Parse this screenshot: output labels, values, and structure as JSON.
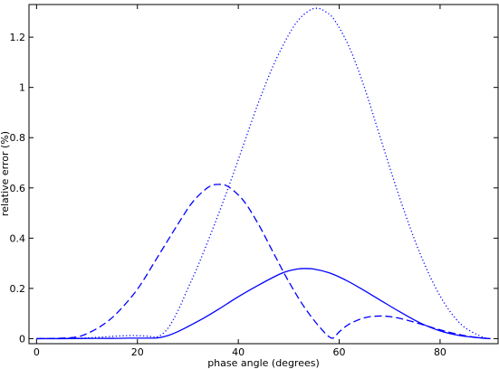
{
  "chart_data": {
    "type": "line",
    "title": "",
    "xlabel": "phase angle (degrees)",
    "ylabel": "relative error (%)",
    "xlim": [
      -1.5,
      91.5
    ],
    "ylim": [
      -0.02,
      1.33
    ],
    "xticks": [
      0,
      20,
      40,
      60,
      80
    ],
    "xtick_labels": [
      "0",
      "20",
      "40",
      "60",
      "80"
    ],
    "yticks": [
      0,
      0.2,
      0.4,
      0.6,
      0.8,
      1,
      1.2
    ],
    "ytick_labels": [
      "0",
      "0.2",
      "0.4",
      "0.6",
      "0.8",
      "1",
      "1.2"
    ],
    "grid": false,
    "legend": "none",
    "line_color": "#0000ff",
    "series": [
      {
        "style": "solid",
        "x": [
          0,
          5,
          10,
          15,
          18,
          20,
          22,
          24,
          26,
          28,
          30,
          33,
          36,
          40,
          44,
          48,
          50,
          52,
          53,
          55,
          58,
          61,
          64,
          68,
          72,
          76,
          80,
          84,
          88,
          90
        ],
        "y": [
          0,
          0,
          0.001,
          0.001,
          0.002,
          0.002,
          0.002,
          0.003,
          0.012,
          0.028,
          0.048,
          0.08,
          0.116,
          0.167,
          0.213,
          0.255,
          0.27,
          0.278,
          0.279,
          0.277,
          0.262,
          0.236,
          0.203,
          0.155,
          0.107,
          0.063,
          0.031,
          0.012,
          0.003,
          0
        ]
      },
      {
        "style": "dashed",
        "x": [
          0,
          5,
          8,
          10,
          13,
          16,
          20,
          24,
          28,
          31,
          34,
          36,
          38,
          41,
          44,
          47,
          50,
          53,
          56,
          58.5,
          60,
          62,
          65,
          68,
          71,
          75,
          79,
          83,
          87,
          90
        ],
        "y": [
          0,
          0.002,
          0.007,
          0.02,
          0.053,
          0.103,
          0.197,
          0.325,
          0.455,
          0.545,
          0.602,
          0.614,
          0.605,
          0.55,
          0.455,
          0.34,
          0.227,
          0.128,
          0.049,
          0.002,
          0.027,
          0.058,
          0.083,
          0.09,
          0.085,
          0.065,
          0.041,
          0.02,
          0.005,
          0
        ]
      },
      {
        "style": "dotted",
        "x": [
          0,
          5,
          10,
          15,
          18,
          20,
          22,
          24,
          26,
          28,
          30,
          32,
          35,
          38,
          41,
          44,
          47,
          50,
          52,
          54,
          55.5,
          57,
          59,
          62,
          65,
          68,
          72,
          76,
          80,
          84,
          88,
          90
        ],
        "y": [
          0,
          0.001,
          0.003,
          0.009,
          0.012,
          0.012,
          0.01,
          0.008,
          0.04,
          0.11,
          0.2,
          0.29,
          0.44,
          0.6,
          0.77,
          0.94,
          1.09,
          1.21,
          1.27,
          1.305,
          1.315,
          1.305,
          1.27,
          1.16,
          1.0,
          0.81,
          0.56,
          0.34,
          0.17,
          0.06,
          0.01,
          0
        ]
      }
    ]
  }
}
